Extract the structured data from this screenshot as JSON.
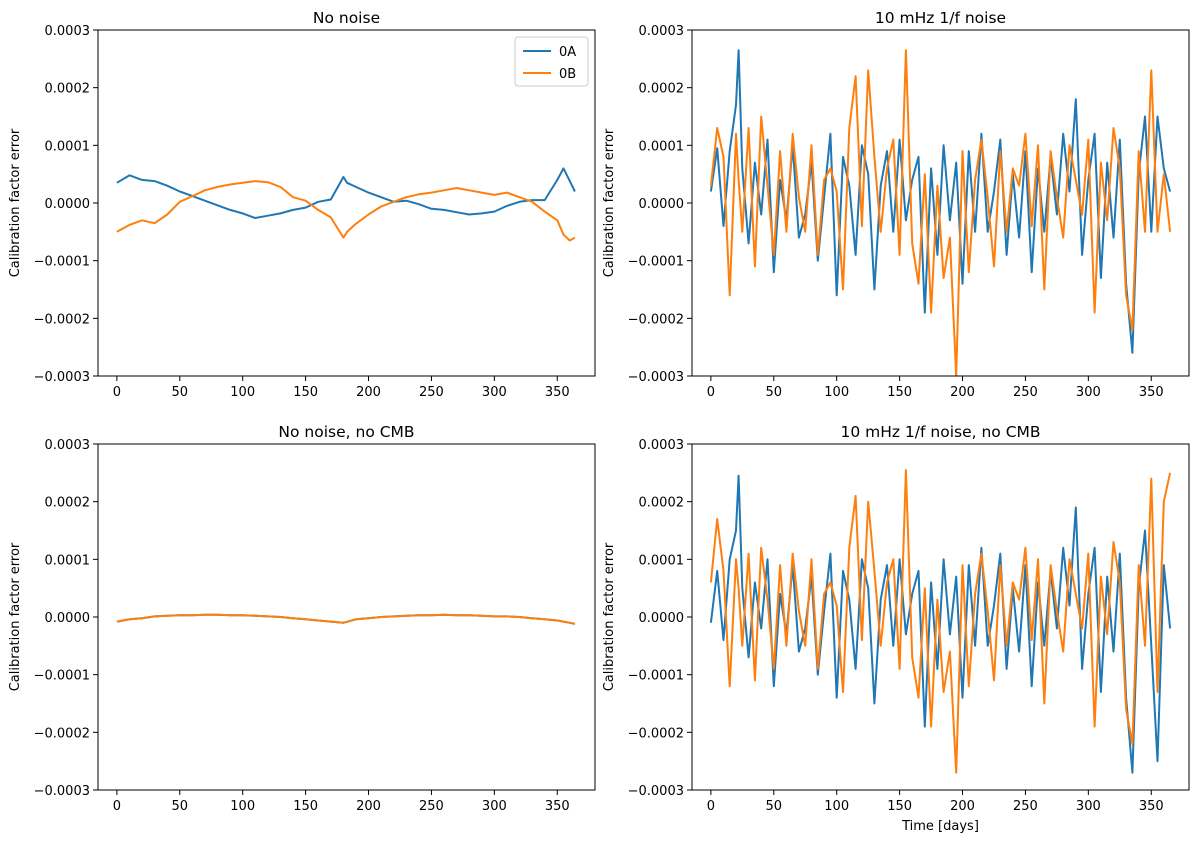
{
  "figure": {
    "colors": {
      "0A": "#1f77b4",
      "0B": "#ff7f0e"
    }
  },
  "chart_data": [
    {
      "type": "line",
      "title": "No noise",
      "xlabel": "",
      "ylabel": "Calibration factor error",
      "xlim": [
        -15,
        380
      ],
      "ylim": [
        -0.0003,
        0.0003
      ],
      "xticks": [
        0,
        50,
        100,
        150,
        200,
        250,
        300,
        350
      ],
      "yticks": [
        "0.0003",
        "0.0002",
        "0.0001",
        "0.0000",
        "−0.0001",
        "−0.0002",
        "−0.0003"
      ],
      "yticks_values": [
        0.0003,
        0.0002,
        0.0001,
        0.0,
        -0.0001,
        -0.0002,
        -0.0003
      ],
      "legend": {
        "placement": "upper right",
        "entries": [
          "0A",
          "0B"
        ]
      },
      "x": [
        0,
        10,
        20,
        30,
        40,
        50,
        60,
        70,
        80,
        90,
        100,
        110,
        120,
        130,
        140,
        150,
        160,
        170,
        180,
        183,
        190,
        200,
        210,
        220,
        230,
        240,
        250,
        260,
        270,
        280,
        290,
        300,
        310,
        320,
        330,
        340,
        350,
        355,
        360,
        364
      ],
      "series": [
        {
          "name": "0A",
          "values": [
            3.5e-05,
            4.8e-05,
            4e-05,
            3.8e-05,
            3e-05,
            2e-05,
            1.2e-05,
            4e-06,
            -4e-06,
            -1.2e-05,
            -1.8e-05,
            -2.6e-05,
            -2.2e-05,
            -1.8e-05,
            -1.2e-05,
            -8e-06,
            2e-06,
            6e-06,
            4.5e-05,
            3.5e-05,
            2.8e-05,
            1.8e-05,
            1e-05,
            2e-06,
            4e-06,
            -2e-06,
            -1e-05,
            -1.2e-05,
            -1.6e-05,
            -2e-05,
            -1.8e-05,
            -1.5e-05,
            -5e-06,
            2e-06,
            5e-06,
            5e-06,
            4e-05,
            6e-05,
            3.8e-05,
            2e-05
          ]
        },
        {
          "name": "0B",
          "values": [
            -5e-05,
            -3.8e-05,
            -3e-05,
            -3.5e-05,
            -2e-05,
            2e-06,
            1.2e-05,
            2.2e-05,
            2.8e-05,
            3.2e-05,
            3.5e-05,
            3.8e-05,
            3.6e-05,
            2.8e-05,
            1e-05,
            4e-06,
            -1.2e-05,
            -2.5e-05,
            -6e-05,
            -5e-05,
            -3.6e-05,
            -2e-05,
            -6e-06,
            2e-06,
            1e-05,
            1.5e-05,
            1.8e-05,
            2.2e-05,
            2.6e-05,
            2.2e-05,
            1.8e-05,
            1.4e-05,
            1.8e-05,
            1e-05,
            2e-06,
            -1.5e-05,
            -3e-05,
            -5.5e-05,
            -6.5e-05,
            -6e-05
          ]
        }
      ]
    },
    {
      "type": "line",
      "title": "10 mHz 1/f noise",
      "xlabel": "",
      "ylabel": "Calibration factor error",
      "xlim": [
        -15,
        380
      ],
      "ylim": [
        -0.0003,
        0.0003
      ],
      "xticks": [
        0,
        50,
        100,
        150,
        200,
        250,
        300,
        350
      ],
      "yticks": [
        "0.0003",
        "0.0002",
        "0.0001",
        "0.0000",
        "−0.0001",
        "−0.0002",
        "−0.0003"
      ],
      "yticks_values": [
        0.0003,
        0.0002,
        0.0001,
        0.0,
        -0.0001,
        -0.0002,
        -0.0003
      ],
      "x": [
        0,
        5,
        10,
        15,
        20,
        22,
        25,
        30,
        35,
        40,
        45,
        50,
        55,
        60,
        65,
        70,
        75,
        80,
        85,
        90,
        95,
        100,
        105,
        110,
        115,
        120,
        125,
        130,
        135,
        140,
        145,
        150,
        155,
        160,
        165,
        170,
        175,
        180,
        185,
        190,
        195,
        200,
        205,
        210,
        215,
        220,
        225,
        230,
        235,
        240,
        245,
        250,
        255,
        260,
        265,
        270,
        275,
        280,
        285,
        290,
        295,
        300,
        305,
        310,
        315,
        320,
        325,
        330,
        335,
        340,
        345,
        350,
        355,
        360,
        365
      ],
      "series": [
        {
          "name": "0A",
          "values": [
            2e-05,
            9.5e-05,
            -4e-05,
            9e-05,
            0.00017,
            0.000265,
            6e-05,
            -7e-05,
            7e-05,
            -2e-05,
            0.00011,
            -0.00012,
            4e-05,
            -3e-05,
            0.0001,
            -6e-05,
            -2e-05,
            7e-05,
            -0.0001,
            1e-05,
            0.00012,
            -0.00016,
            8e-05,
            3e-05,
            -9e-05,
            0.0001,
            5e-05,
            -0.00015,
            3e-05,
            9e-05,
            -5e-05,
            0.00011,
            -3e-05,
            4e-05,
            8e-05,
            -0.00019,
            6e-05,
            -9e-05,
            0.0001,
            -3e-05,
            7e-05,
            -0.00014,
            9e-05,
            -5e-05,
            0.00012,
            -5e-05,
            2e-05,
            0.00011,
            -9e-05,
            5e-05,
            -6e-05,
            9e-05,
            -0.00012,
            6e-05,
            -5e-05,
            8e-05,
            -2e-05,
            0.00012,
            2e-05,
            0.00018,
            -9e-05,
            4e-05,
            0.00012,
            -0.00013,
            7e-05,
            -6e-05,
            0.00011,
            -0.00014,
            -0.00026,
            5e-05,
            0.00015,
            -5e-05,
            0.00015,
            6e-05,
            2e-05
          ]
        },
        {
          "name": "0B",
          "values": [
            3e-05,
            0.00013,
            8e-05,
            -0.00016,
            0.00012,
            4e-05,
            -5e-05,
            0.00013,
            -0.00011,
            0.00015,
            3e-05,
            -9e-05,
            9e-05,
            -5e-05,
            0.00012,
            1e-05,
            -5e-05,
            0.0001,
            -9e-05,
            4e-05,
            6e-05,
            2e-05,
            -0.00015,
            0.00013,
            0.00022,
            -4e-05,
            0.00023,
            8e-05,
            -5e-05,
            6e-05,
            0.00011,
            -9e-05,
            0.000265,
            -7e-05,
            -0.00014,
            5e-05,
            -0.00019,
            3e-05,
            -0.00013,
            -6e-05,
            -0.0003,
            9e-05,
            -0.00012,
            4e-05,
            0.00011,
            1e-05,
            -0.00011,
            9e-05,
            -5e-05,
            6e-05,
            3e-05,
            0.00012,
            -4e-05,
            0.0001,
            -0.00015,
            9e-05,
            1e-05,
            -6e-05,
            0.0001,
            4e-05,
            -2e-05,
            0.00011,
            -0.00019,
            7e-05,
            -3e-05,
            0.00013,
            6e-05,
            -0.00016,
            -0.00022,
            9e-05,
            -5e-05,
            0.00023,
            -5e-05,
            5e-05,
            -5e-05
          ]
        }
      ]
    },
    {
      "type": "line",
      "title": "No noise, no CMB",
      "xlabel": "",
      "ylabel": "Calibration factor error",
      "xlim": [
        -15,
        380
      ],
      "ylim": [
        -0.0003,
        0.0003
      ],
      "xticks": [
        0,
        50,
        100,
        150,
        200,
        250,
        300,
        350
      ],
      "yticks": [
        "0.0003",
        "0.0002",
        "0.0001",
        "0.0000",
        "−0.0001",
        "−0.0002",
        "−0.0003"
      ],
      "yticks_values": [
        0.0003,
        0.0002,
        0.0001,
        0.0,
        -0.0001,
        -0.0002,
        -0.0003
      ],
      "x": [
        0,
        10,
        20,
        30,
        40,
        50,
        60,
        70,
        80,
        90,
        100,
        110,
        120,
        130,
        140,
        150,
        160,
        170,
        180,
        190,
        200,
        210,
        220,
        230,
        240,
        250,
        260,
        270,
        280,
        290,
        300,
        310,
        320,
        330,
        340,
        350,
        360,
        364
      ],
      "series": [
        {
          "name": "0A",
          "values": [
            -8e-06,
            -4e-06,
            -2e-06,
            1e-06,
            2e-06,
            3e-06,
            3e-06,
            4e-06,
            4e-06,
            3e-06,
            3e-06,
            2e-06,
            1e-06,
            0.0,
            -2e-06,
            -4e-06,
            -6e-06,
            -8e-06,
            -1e-05,
            -4e-06,
            -2e-06,
            0.0,
            1e-06,
            2e-06,
            3e-06,
            3e-06,
            4e-06,
            3e-06,
            3e-06,
            2e-06,
            1e-06,
            1e-06,
            0.0,
            -2e-06,
            -4e-06,
            -6e-06,
            -1e-05,
            -1.2e-05
          ]
        },
        {
          "name": "0B",
          "values": [
            -8e-06,
            -4e-06,
            -2e-06,
            1e-06,
            2e-06,
            3e-06,
            3e-06,
            4e-06,
            4e-06,
            3e-06,
            3e-06,
            2e-06,
            1e-06,
            0.0,
            -2e-06,
            -4e-06,
            -6e-06,
            -8e-06,
            -1e-05,
            -4e-06,
            -2e-06,
            0.0,
            1e-06,
            2e-06,
            3e-06,
            3e-06,
            4e-06,
            3e-06,
            3e-06,
            2e-06,
            1e-06,
            1e-06,
            0.0,
            -2e-06,
            -4e-06,
            -6e-06,
            -1e-05,
            -1.2e-05
          ]
        }
      ]
    },
    {
      "type": "line",
      "title": "10 mHz 1/f noise, no CMB",
      "xlabel": "Time [days]",
      "ylabel": "Calibration factor error",
      "xlim": [
        -15,
        380
      ],
      "ylim": [
        -0.0003,
        0.0003
      ],
      "xticks": [
        0,
        50,
        100,
        150,
        200,
        250,
        300,
        350
      ],
      "yticks": [
        "0.0003",
        "0.0002",
        "0.0001",
        "0.0000",
        "−0.0001",
        "−0.0002",
        "−0.0003"
      ],
      "yticks_values": [
        0.0003,
        0.0002,
        0.0001,
        0.0,
        -0.0001,
        -0.0002,
        -0.0003
      ],
      "x": [
        0,
        5,
        10,
        15,
        20,
        22,
        25,
        30,
        35,
        40,
        45,
        50,
        55,
        60,
        65,
        70,
        75,
        80,
        85,
        90,
        95,
        100,
        105,
        110,
        115,
        120,
        125,
        130,
        135,
        140,
        145,
        150,
        155,
        160,
        165,
        170,
        175,
        180,
        185,
        190,
        195,
        200,
        205,
        210,
        215,
        220,
        225,
        230,
        235,
        240,
        245,
        250,
        255,
        260,
        265,
        270,
        275,
        280,
        285,
        290,
        295,
        300,
        305,
        310,
        315,
        320,
        325,
        330,
        335,
        340,
        345,
        350,
        355,
        360,
        365
      ],
      "series": [
        {
          "name": "0A",
          "values": [
            -1e-05,
            8e-05,
            -4e-05,
            0.0001,
            0.00015,
            0.000245,
            5e-05,
            -7e-05,
            6e-05,
            -2e-05,
            0.0001,
            -0.00012,
            4e-05,
            -3e-05,
            9e-05,
            -6e-05,
            -2e-05,
            7e-05,
            -0.0001,
            1e-05,
            0.00011,
            -0.00014,
            8e-05,
            3e-05,
            -9e-05,
            0.0001,
            5e-05,
            -0.00015,
            3e-05,
            9e-05,
            -5e-05,
            0.0001,
            -3e-05,
            4e-05,
            8e-05,
            -0.00019,
            6e-05,
            -9e-05,
            0.0001,
            -3e-05,
            7e-05,
            -0.00014,
            9e-05,
            -5e-05,
            0.00012,
            -5e-05,
            2e-05,
            0.00011,
            -9e-05,
            5e-05,
            -6e-05,
            9e-05,
            -0.00012,
            6e-05,
            -5e-05,
            8e-05,
            -2e-05,
            0.00012,
            2e-05,
            0.00019,
            -9e-05,
            4e-05,
            0.00012,
            -0.00013,
            7e-05,
            -6e-05,
            0.00011,
            -0.00014,
            -0.00027,
            5e-05,
            0.00015,
            -5e-05,
            -0.00025,
            9e-05,
            -2e-05
          ]
        },
        {
          "name": "0B",
          "values": [
            6e-05,
            0.00017,
            8e-05,
            -0.00012,
            0.0001,
            5e-05,
            -5e-05,
            0.00011,
            -0.00011,
            0.00012,
            3e-05,
            -9e-05,
            9e-05,
            -5e-05,
            0.00011,
            1e-05,
            -5e-05,
            0.0001,
            -9e-05,
            4e-05,
            6e-05,
            2e-05,
            -0.00013,
            0.00012,
            0.00021,
            -4e-05,
            0.0002,
            8e-05,
            -5e-05,
            6e-05,
            0.0001,
            -9e-05,
            0.000255,
            -7e-05,
            -0.00014,
            5e-05,
            -0.00019,
            3e-05,
            -0.00013,
            -6e-05,
            -0.00027,
            9e-05,
            -0.00012,
            4e-05,
            0.00011,
            1e-05,
            -0.00011,
            9e-05,
            -5e-05,
            6e-05,
            3e-05,
            0.00012,
            -4e-05,
            0.0001,
            -0.00015,
            9e-05,
            1e-05,
            -6e-05,
            0.0001,
            4e-05,
            -2e-05,
            0.00011,
            -0.00019,
            7e-05,
            -3e-05,
            0.00013,
            6e-05,
            -0.00016,
            -0.00022,
            9e-05,
            -5e-05,
            0.00024,
            -0.00013,
            0.0002,
            0.00025
          ]
        }
      ]
    }
  ]
}
